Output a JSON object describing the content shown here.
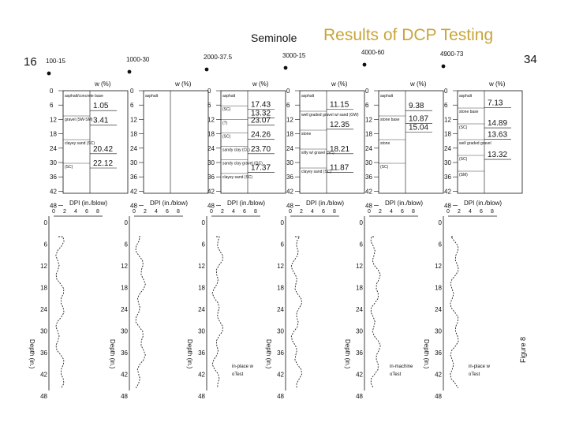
{
  "header": {
    "title_left": "Seminole",
    "title_right": "Results of DCP Testing",
    "page_left": "16",
    "page_right": "34",
    "figure_label": "Figure 8"
  },
  "axis_labels": {
    "wpct": "w (%)",
    "dpi": "DPI (in./blow)",
    "depth": "Depth (in.)"
  },
  "depth_ticks": [
    "0",
    "6",
    "12",
    "18",
    "24",
    "30",
    "36",
    "42",
    "48"
  ],
  "dpi_ticks": [
    "0",
    "2",
    "4",
    "6",
    "8"
  ],
  "stations": [
    {
      "label": "100-15",
      "layers": [
        "asphalt/concrete base",
        "gravel (SW-SM)",
        "clayey sand (SC)",
        "(SC)"
      ],
      "w": [
        "1.05",
        "3.41",
        "20.42",
        "22.12"
      ],
      "legend": []
    },
    {
      "label": "1000-30",
      "layers": [
        "asphalt"
      ],
      "w": [],
      "legend": []
    },
    {
      "label": "2000-37.5",
      "layers": [
        "asphalt",
        "(SC)",
        "(?)",
        "(SC)",
        "sandy clay (CL)",
        "sandy clay gravel (GC)",
        "clayey sand (SC)"
      ],
      "w": [
        "17.43",
        "13.32",
        "23.07",
        "24.26",
        "23.70",
        "17.37"
      ],
      "legend": [
        "in-place w",
        "oTest"
      ]
    },
    {
      "label": "3000-15",
      "layers": [
        "asphalt",
        "well graded gravel w/ sand (GW)",
        "stone",
        "silty w/ gravel (SC)",
        "clayey sand (SC)"
      ],
      "w": [
        "11.15",
        "12.35",
        "18.21",
        "11.87"
      ],
      "legend": []
    },
    {
      "label": "4000-60",
      "layers": [
        "asphalt",
        "stone base",
        "stone",
        "(SC)"
      ],
      "w": [
        "9.38",
        "10.87",
        "15.04"
      ],
      "legend": [
        "in-machine",
        "oTest"
      ]
    },
    {
      "label": "4900-73",
      "layers": [
        "asphalt",
        "stone base",
        "(SC)",
        "well graded gravel",
        "(SC)",
        "(SM)"
      ],
      "w": [
        "7.13",
        "14.89",
        "13.63",
        "13.32"
      ],
      "legend": [
        "in-place w",
        "oTest"
      ]
    }
  ]
}
